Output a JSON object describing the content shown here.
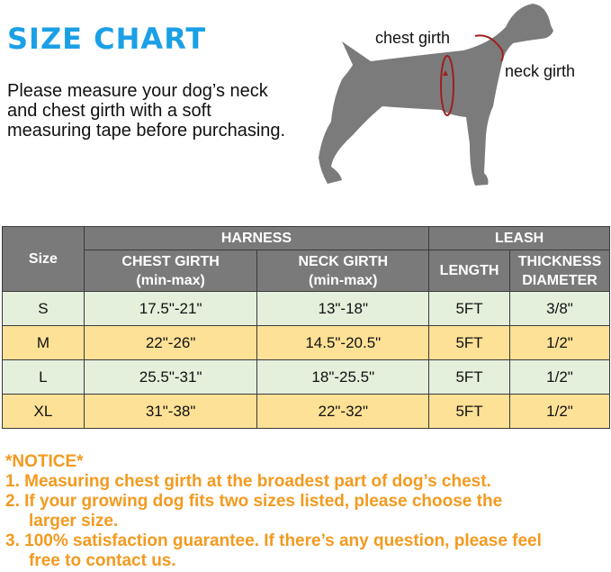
{
  "title": "SIZE CHART",
  "intro": "Please measure your dog’s neck and chest girth with a soft measuring tape before purchasing.",
  "diagram": {
    "chest_label": "chest girth",
    "neck_label": "neck girth",
    "measure_color": "#a01e1e"
  },
  "table": {
    "size_header": "Size",
    "harness_header": "HARNESS",
    "leash_header": "LEASH",
    "chest_header": "CHEST GIRTH",
    "chest_sub": "(min-max)",
    "neck_header": "NECK GIRTH",
    "neck_sub": "(min-max)",
    "length_header": "LENGTH",
    "thickness_header": "THICKNESS",
    "thickness_sub": "DIAMETER",
    "rows": [
      {
        "size": "S",
        "chest": "17.5\"-21\"",
        "neck": "13\"-18\"",
        "length": "5FT",
        "thickness": "3/8\""
      },
      {
        "size": "M",
        "chest": "22\"-26\"",
        "neck": "14.5\"-20.5\"",
        "length": "5FT",
        "thickness": "1/2\""
      },
      {
        "size": "L",
        "chest": "25.5\"-31\"",
        "neck": "18\"-25.5\"",
        "length": "5FT",
        "thickness": "1/2\""
      },
      {
        "size": "XL",
        "chest": "31\"-38\"",
        "neck": "22\"-32\"",
        "length": "5FT",
        "thickness": "1/2\""
      }
    ]
  },
  "notice": {
    "heading": "*NOTICE*",
    "items": [
      "1.  Measuring chest girth at the broadest part of dog’s chest.",
      "2.  If your growing dog fits two sizes listed, please choose the",
      "larger size.",
      "3. 100% satisfaction guarantee. If there’s any question, please feel",
      "free to contact us."
    ]
  },
  "colors": {
    "title": "#1ba0e6",
    "header_bg": "#7a7a7a",
    "row_green": "#e4efdc",
    "row_yellow": "#fde196",
    "notice": "#f39a1f"
  }
}
